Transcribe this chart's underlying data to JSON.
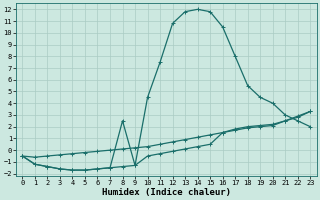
{
  "xlabel": "Humidex (Indice chaleur)",
  "xlim": [
    -0.5,
    23.5
  ],
  "ylim": [
    -2.2,
    12.5
  ],
  "xticks": [
    0,
    1,
    2,
    3,
    4,
    5,
    6,
    7,
    8,
    9,
    10,
    11,
    12,
    13,
    14,
    15,
    16,
    17,
    18,
    19,
    20,
    21,
    22,
    23
  ],
  "yticks": [
    -2,
    -1,
    0,
    1,
    2,
    3,
    4,
    5,
    6,
    7,
    8,
    9,
    10,
    11,
    12
  ],
  "bg_color": "#cce8e0",
  "grid_color": "#aaccc4",
  "line_color": "#1a6e6a",
  "line1_x": [
    0,
    1,
    2,
    3,
    4,
    5,
    6,
    7,
    8,
    9,
    10,
    11,
    12,
    13,
    14,
    15,
    16,
    17,
    18,
    19,
    20,
    21,
    22,
    23
  ],
  "line1_y": [
    -0.5,
    -1.2,
    -1.4,
    -1.6,
    -1.7,
    -1.7,
    -1.6,
    -1.5,
    -1.4,
    -1.3,
    4.5,
    7.5,
    10.8,
    11.8,
    12.0,
    11.8,
    10.5,
    8.0,
    5.5,
    4.5,
    4.0,
    3.0,
    2.5,
    2.0
  ],
  "line2_x": [
    0,
    1,
    2,
    3,
    4,
    5,
    6,
    7,
    8,
    9,
    10,
    11,
    12,
    13,
    14,
    15,
    16,
    17,
    18,
    19,
    20,
    21,
    22,
    23
  ],
  "line2_y": [
    -0.5,
    -1.2,
    -1.4,
    -1.6,
    -1.7,
    -1.7,
    -1.6,
    -1.5,
    2.5,
    -1.3,
    -0.5,
    -0.3,
    -0.1,
    0.1,
    0.3,
    0.5,
    1.5,
    1.8,
    2.0,
    2.1,
    2.2,
    2.5,
    2.8,
    3.3
  ],
  "line3_x": [
    0,
    1,
    2,
    3,
    4,
    5,
    6,
    7,
    8,
    9,
    10,
    11,
    12,
    13,
    14,
    15,
    16,
    17,
    18,
    19,
    20,
    21,
    22,
    23
  ],
  "line3_y": [
    -0.5,
    -0.6,
    -0.5,
    -0.4,
    -0.3,
    -0.2,
    -0.1,
    0.0,
    0.1,
    0.2,
    0.3,
    0.5,
    0.7,
    0.9,
    1.1,
    1.3,
    1.5,
    1.7,
    1.9,
    2.0,
    2.1,
    2.5,
    2.9,
    3.3
  ],
  "marker": "+",
  "markersize": 3,
  "linewidth": 0.9,
  "tick_fontsize": 5,
  "label_fontsize": 6.5
}
